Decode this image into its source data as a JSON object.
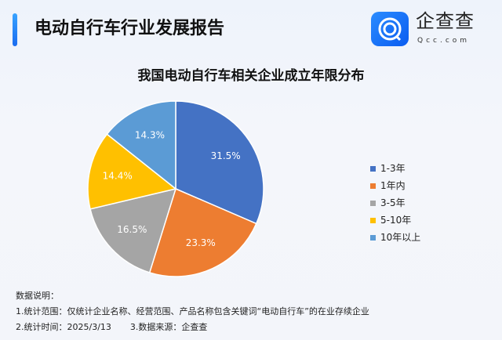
{
  "header": {
    "title": "电动自行车行业发展报告",
    "brand": "企查查",
    "brand_sub": "Qcc.com"
  },
  "chart_data": {
    "type": "pie",
    "title": "我国电动自行车相关企业成立年限分布",
    "categories": [
      "1-3年",
      "1年内",
      "3-5年",
      "5-10年",
      "10年以上"
    ],
    "values": [
      31.5,
      23.3,
      16.5,
      14.4,
      14.3
    ],
    "labels": [
      "31.5%",
      "23.3%",
      "16.5%",
      "14.4%",
      "14.3%"
    ],
    "colors": [
      "#4472c4",
      "#ed7d31",
      "#a5a5a5",
      "#ffc000",
      "#5b9bd5"
    ],
    "legend_position": "right"
  },
  "notes": {
    "heading": "数据说明：",
    "line1": "1.统计范围：仅统计企业名称、经营范围、产品名称包含关键词“电动自行车”的在业存续企业",
    "line2a": "2.统计时间：2025/3/13",
    "line2b": "3.数据来源：企查查"
  }
}
